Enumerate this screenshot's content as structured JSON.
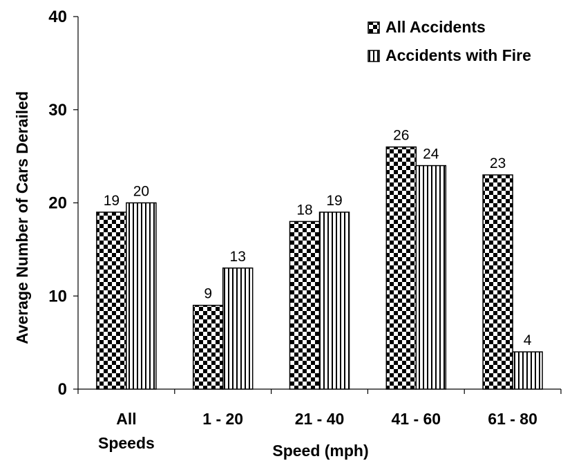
{
  "chart_data": {
    "type": "bar",
    "title": "",
    "xlabel": "Speed (mph)",
    "ylabel": "Average Number of Cars Derailed",
    "ylim": [
      0,
      40
    ],
    "yticks": [
      "0",
      "10",
      "20",
      "30",
      "40"
    ],
    "categories": [
      [
        "All",
        "Speeds"
      ],
      [
        "1 - 20"
      ],
      [
        "21 - 40"
      ],
      [
        "41 - 60"
      ],
      [
        "61 - 80"
      ]
    ],
    "series": [
      {
        "name": "All Accidents",
        "pattern": "checker",
        "values": [
          19,
          9,
          18,
          26,
          23
        ]
      },
      {
        "name": "Accidents with Fire",
        "pattern": "vertical-stripes",
        "values": [
          20,
          13,
          19,
          24,
          4
        ]
      }
    ],
    "legend_position": "top-right",
    "grid": false,
    "colors": {
      "bar_ink": "#000000",
      "background": "#ffffff"
    }
  }
}
